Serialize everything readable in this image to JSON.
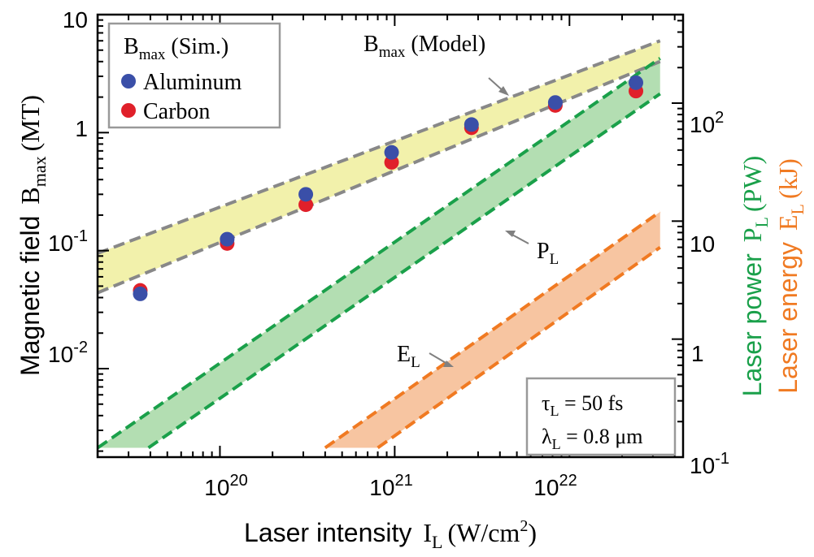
{
  "chart_data": {
    "type": "scatter",
    "xlabel": {
      "main": "Laser intensity",
      "sym": "I",
      "sub": "L",
      "unit_pre": "(W/cm",
      "unit_sup": "2",
      "unit_post": ")"
    },
    "ylabel_left": {
      "main": "Magnetic field",
      "sym": "B",
      "sub": "max",
      "unit": "(MT)"
    },
    "ylabel_right_power": {
      "main": "Laser power",
      "sym": "P",
      "sub": "L",
      "unit": "(PW)"
    },
    "ylabel_right_energy": {
      "main": "Laser energy",
      "sym": "E",
      "sub": "L",
      "unit": "(kJ)"
    },
    "x_range_log10": [
      19.3,
      22.65
    ],
    "x_ticks": [
      {
        "base": "10",
        "exp": "20",
        "log": 20
      },
      {
        "base": "10",
        "exp": "21",
        "log": 21
      },
      {
        "base": "10",
        "exp": "22",
        "log": 22
      }
    ],
    "yleft_range_log10": [
      -2.75,
      1.0
    ],
    "yleft_ticks": [
      {
        "base": "10",
        "exp": "",
        "log": 1
      },
      {
        "base": "1",
        "exp": "",
        "log": 0
      },
      {
        "base": "10",
        "exp": "-1",
        "log": -1
      },
      {
        "base": "10",
        "exp": "-2",
        "log": -2
      }
    ],
    "yright_range_log10": [
      -1.0,
      2.75
    ],
    "yright_ticks": [
      {
        "base": "10",
        "exp": "2",
        "log": 2
      },
      {
        "base": "10",
        "exp": "",
        "log": 1
      },
      {
        "base": "1",
        "exp": "",
        "log": 0
      },
      {
        "base": "10",
        "exp": "-1",
        "log": -1
      }
    ],
    "series": [
      {
        "name": "Aluminum",
        "color": "#3a4fa8",
        "points": [
          [
            3.5e+19,
            0.043
          ],
          [
            1.1e+20,
            0.125
          ],
          [
            3.1e+20,
            0.3
          ],
          [
            9.6e+20,
            0.68
          ],
          [
            2.75e+21,
            1.17
          ],
          [
            8.3e+21,
            1.8
          ],
          [
            2.4e+22,
            2.65
          ]
        ]
      },
      {
        "name": "Carbon",
        "color": "#e0202a",
        "points": [
          [
            3.5e+19,
            0.046
          ],
          [
            1.1e+20,
            0.115
          ],
          [
            3.1e+20,
            0.245
          ],
          [
            9.6e+20,
            0.56
          ],
          [
            2.75e+21,
            1.1
          ],
          [
            8.3e+21,
            1.7
          ],
          [
            2.4e+22,
            2.25
          ]
        ]
      }
    ],
    "bands": [
      {
        "name": "B_max (Model)",
        "axis": "left",
        "fill": "#f0ef9c",
        "line": "#888888",
        "x": [
          2e+19,
          3.3e+22
        ],
        "upper": [
          0.095,
          6.0
        ],
        "lower": [
          0.044,
          4.0
        ]
      },
      {
        "name": "P_L",
        "axis": "right",
        "fill": "#a6d8a4",
        "line": "#1aa04a",
        "x": [
          2e+19,
          3.3e+22
        ],
        "upper": [
          0.12,
          240
        ],
        "lower": [
          0.12,
          120
        ],
        "x_lower_start": 3.9e+19
      },
      {
        "name": "E_L",
        "axis": "right",
        "fill": "#f6bb91",
        "line": "#f07a22",
        "x": [
          4e+20,
          3.3e+22
        ],
        "upper": [
          0.12,
          12
        ],
        "lower": [
          0.12,
          6.0
        ],
        "x_lower_start": 8e+20
      }
    ],
    "legend": {
      "position": "top-left",
      "title": {
        "sym": "B",
        "sub": "max",
        "rest": " (Sim.)"
      },
      "entries": [
        "Aluminum",
        "Carbon"
      ]
    },
    "annotations": {
      "model": {
        "sym": "B",
        "sub": "max",
        "rest": " (Model)"
      },
      "power": {
        "sym": "P",
        "sub": "L"
      },
      "energy": {
        "sym": "E",
        "sub": "L"
      },
      "params": [
        {
          "sym": "τ",
          "sub": "L",
          "rest": " = 50 fs"
        },
        {
          "sym": "λ",
          "sub": "L",
          "rest": " = 0.8 μm"
        }
      ]
    },
    "colors": {
      "power_label": "#1aa04a",
      "energy_label": "#f07a22",
      "axis": "#000000"
    }
  }
}
